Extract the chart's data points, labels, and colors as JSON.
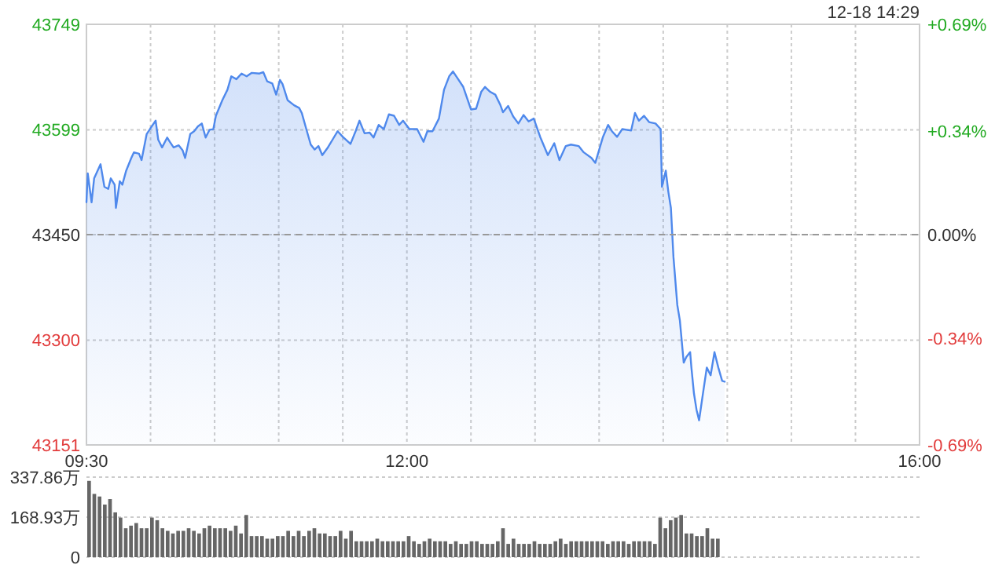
{
  "chart_data": [
    {
      "type": "area",
      "color": "#4f89ec",
      "grid": true,
      "annotations": [
        "12-18 14:29"
      ],
      "x": [
        9.5,
        9.51,
        9.54,
        9.56,
        9.61,
        9.64,
        9.67,
        9.69,
        9.72,
        9.73,
        9.76,
        9.78,
        9.81,
        9.85,
        9.87,
        9.91,
        9.93,
        9.97,
        10.01,
        10.04,
        10.06,
        10.09,
        10.13,
        10.15,
        10.18,
        10.22,
        10.25,
        10.27,
        10.31,
        10.34,
        10.37,
        10.4,
        10.43,
        10.46,
        10.49,
        10.51,
        10.56,
        10.6,
        10.63,
        10.67,
        10.71,
        10.75,
        10.79,
        10.85,
        10.88,
        10.91,
        10.95,
        10.98,
        11.01,
        11.03,
        11.07,
        11.12,
        11.16,
        11.18,
        11.22,
        11.25,
        11.28,
        11.31,
        11.34,
        11.38,
        11.42,
        11.46,
        11.5,
        11.56,
        11.6,
        11.63,
        11.67,
        11.71,
        11.74,
        11.78,
        11.82,
        11.86,
        11.9,
        11.94,
        11.97,
        12.02,
        12.08,
        12.13,
        12.16,
        12.2,
        12.25,
        12.29,
        12.33,
        12.36,
        12.4,
        12.44,
        12.5,
        12.54,
        12.58,
        12.61,
        12.65,
        12.69,
        12.73,
        12.75,
        12.79,
        12.83,
        12.87,
        12.91,
        12.95,
        12.99,
        13.04,
        13.1,
        13.15,
        13.19,
        13.24,
        13.28,
        13.34,
        13.38,
        13.44,
        13.47,
        13.53,
        13.57,
        13.6,
        13.64,
        13.68,
        13.75,
        13.78,
        13.81,
        13.85,
        13.89,
        13.94,
        13.98,
        13.99,
        14.02,
        14.04,
        14.06,
        14.08,
        14.11,
        14.13,
        14.16,
        14.18,
        14.21,
        14.22,
        14.24,
        14.26,
        14.28,
        14.31,
        14.34,
        14.37,
        14.4,
        14.43,
        14.46,
        14.48
      ],
      "values": [
        43496,
        43537,
        43496,
        43530,
        43550,
        43518,
        43515,
        43530,
        43521,
        43488,
        43526,
        43521,
        43541,
        43559,
        43567,
        43565,
        43556,
        43593,
        43604,
        43612,
        43585,
        43574,
        43588,
        43582,
        43574,
        43577,
        43570,
        43559,
        43593,
        43597,
        43604,
        43608,
        43588,
        43599,
        43600,
        43619,
        43641,
        43656,
        43675,
        43671,
        43679,
        43675,
        43680,
        43679,
        43681,
        43668,
        43665,
        43649,
        43670,
        43664,
        43641,
        43634,
        43630,
        43623,
        43597,
        43578,
        43571,
        43576,
        43563,
        43573,
        43585,
        43597,
        43589,
        43579,
        43597,
        43612,
        43594,
        43595,
        43588,
        43606,
        43600,
        43621,
        43619,
        43606,
        43612,
        43600,
        43600,
        43582,
        43597,
        43597,
        43615,
        43656,
        43675,
        43682,
        43671,
        43660,
        43628,
        43629,
        43653,
        43660,
        43653,
        43649,
        43634,
        43624,
        43633,
        43618,
        43608,
        43620,
        43611,
        43615,
        43589,
        43563,
        43580,
        43556,
        43576,
        43578,
        43576,
        43567,
        43559,
        43552,
        43589,
        43606,
        43597,
        43589,
        43600,
        43598,
        43623,
        43612,
        43619,
        43610,
        43608,
        43600,
        43518,
        43541,
        43511,
        43488,
        43418,
        43350,
        43328,
        43268,
        43276,
        43283,
        43261,
        43224,
        43201,
        43186,
        43224,
        43261,
        43250,
        43283,
        43261,
        43242,
        43241
      ],
      "xlim": [
        9.5,
        16
      ],
      "xticks": [
        {
          "value": 9.5,
          "label": "09:30"
        },
        {
          "value": 10,
          "label": null
        },
        {
          "value": 10.5,
          "label": null
        },
        {
          "value": 11,
          "label": null
        },
        {
          "value": 11.5,
          "label": null
        },
        {
          "value": 12,
          "label": "12:00"
        },
        {
          "value": 12.5,
          "label": null
        },
        {
          "value": 13,
          "label": null
        },
        {
          "value": 13.5,
          "label": null
        },
        {
          "value": 14,
          "label": null
        },
        {
          "value": 14.5,
          "label": null
        },
        {
          "value": 15,
          "label": null
        },
        {
          "value": 15.5,
          "label": null
        },
        {
          "value": 16,
          "label": "16:00"
        }
      ],
      "ylim": [
        43151,
        43749
      ],
      "yticks": [
        43151,
        43300,
        43450,
        43599,
        43749
      ],
      "y2lim": [
        -0.69,
        0.69
      ],
      "y2ticks": [
        {
          "value": -0.69,
          "label": "-0.69%"
        },
        {
          "value": -0.34,
          "label": "-0.34%"
        },
        {
          "value": 0,
          "label": "0.00%"
        },
        {
          "value": 0.34,
          "label": "+0.34%"
        },
        {
          "value": 0.69,
          "label": "+0.69%"
        }
      ],
      "ref_lines": [
        {
          "axis": "y",
          "value": 43450,
          "line_style": "dashed",
          "color": "#999999"
        }
      ]
    },
    {
      "type": "bar",
      "color": "#666666",
      "grid": "y",
      "tick_labels": "y",
      "categories": [
        null,
        null,
        null,
        null,
        null,
        null,
        null,
        null,
        null,
        null,
        null,
        null,
        null,
        null,
        null,
        null,
        null,
        null,
        null,
        null,
        null,
        null,
        null,
        null,
        null,
        null,
        null,
        null,
        null,
        null,
        null,
        null,
        null,
        null,
        null,
        null,
        null,
        null,
        null,
        null,
        null,
        null,
        null,
        null,
        null,
        null,
        null,
        null,
        null,
        null,
        null,
        null,
        null,
        null,
        null,
        null,
        null,
        null,
        null,
        null,
        null,
        null,
        null,
        null,
        null,
        null,
        null,
        null,
        null,
        null,
        null,
        null,
        null,
        null,
        null,
        null,
        null,
        null,
        null,
        null,
        null,
        null,
        null,
        null,
        null,
        null,
        null,
        null,
        null,
        null,
        null,
        null,
        null,
        null,
        null,
        null,
        null,
        null,
        null,
        null,
        null,
        null,
        null,
        null,
        null,
        null,
        null,
        null,
        null,
        null,
        null,
        null,
        null,
        null,
        null,
        null,
        null,
        null,
        null,
        null,
        null,
        null,
        null,
        null,
        null,
        null,
        null,
        null,
        null,
        null,
        null,
        null,
        null,
        null,
        null,
        null,
        null,
        null,
        null,
        null,
        null,
        null,
        null,
        null,
        null,
        null,
        null,
        null,
        null,
        null,
        null,
        null,
        null,
        null,
        null,
        null,
        null,
        null,
        null
      ],
      "values": [
        322,
        267,
        256,
        222,
        245,
        189,
        167,
        122,
        133,
        144,
        122,
        122,
        167,
        156,
        122,
        111,
        100,
        111,
        111,
        122,
        111,
        100,
        122,
        133,
        122,
        122,
        122,
        111,
        133,
        100,
        178,
        89,
        89,
        89,
        78,
        78,
        89,
        89,
        111,
        89,
        111,
        89,
        111,
        122,
        100,
        100,
        89,
        89,
        111,
        78,
        111,
        67,
        67,
        67,
        67,
        78,
        67,
        67,
        67,
        67,
        67,
        89,
        67,
        56,
        67,
        78,
        67,
        67,
        67,
        56,
        67,
        56,
        56,
        67,
        67,
        56,
        56,
        56,
        67,
        122,
        56,
        78,
        56,
        56,
        56,
        67,
        56,
        56,
        56,
        67,
        78,
        56,
        67,
        67,
        67,
        67,
        67,
        67,
        67,
        56,
        67,
        67,
        67,
        56,
        67,
        67,
        67,
        67,
        56,
        167,
        122,
        156,
        167,
        178,
        100,
        100,
        89,
        89,
        122,
        78,
        78,
        null,
        null,
        null,
        null,
        null,
        null,
        null,
        null,
        null,
        null,
        null,
        null,
        null,
        null,
        null,
        null,
        null,
        null,
        null,
        null,
        null,
        null,
        null,
        null,
        null,
        null,
        null,
        null,
        null,
        null,
        null,
        null,
        null,
        null,
        null,
        null,
        null,
        null
      ],
      "ylim": [
        0,
        337.86
      ],
      "yticks": [
        0,
        {
          "value": 168.93,
          "label": "168.93万"
        },
        {
          "value": 337.86,
          "label": "337.86万"
        }
      ]
    }
  ]
}
